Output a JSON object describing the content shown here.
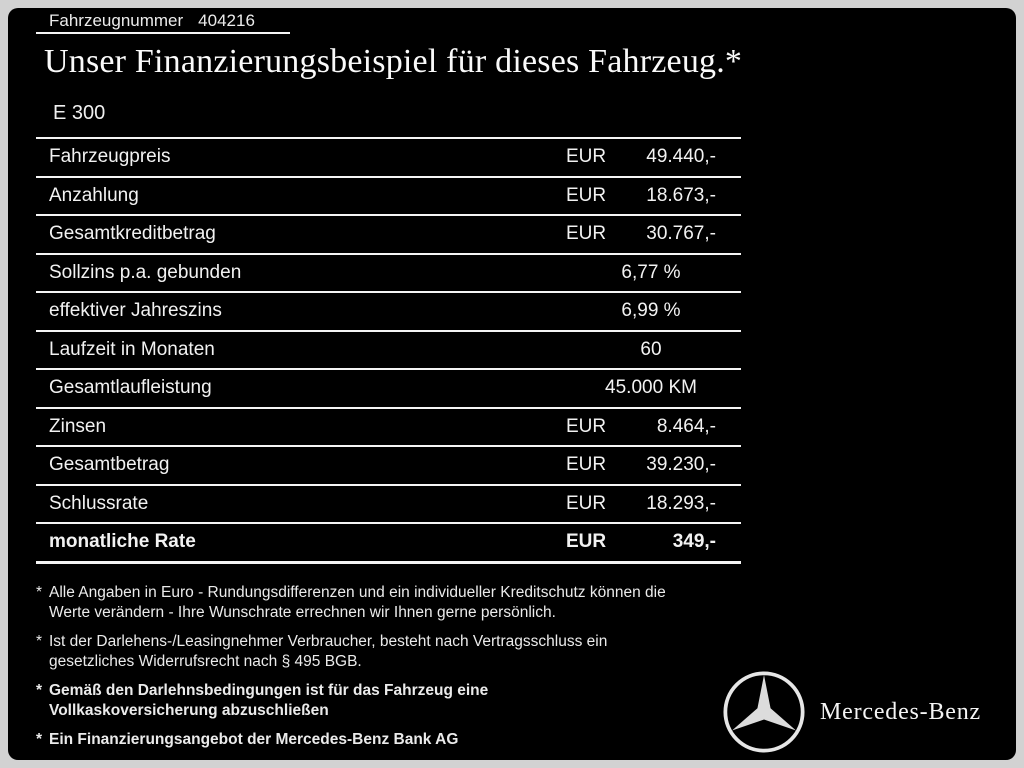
{
  "header": {
    "vehicle_number_label": "Fahrzeugnummer",
    "vehicle_number": "404216",
    "title": "Unser Finanzierungsbeispiel für dieses Fahrzeug.*",
    "model": "E 300"
  },
  "table": {
    "rows": [
      {
        "label": "Fahrzeugpreis",
        "currency": "EUR",
        "value": "49.440,-",
        "bold": false
      },
      {
        "label": "Anzahlung",
        "currency": "EUR",
        "value": "18.673,-",
        "bold": false
      },
      {
        "label": "Gesamtkreditbetrag",
        "currency": "EUR",
        "value": "30.767,-",
        "bold": false
      },
      {
        "label": "Sollzins p.a. gebunden",
        "currency": null,
        "value": "6,77 %",
        "bold": false
      },
      {
        "label": "effektiver Jahreszins",
        "currency": null,
        "value": "6,99 %",
        "bold": false
      },
      {
        "label": "Laufzeit in Monaten",
        "currency": null,
        "value": "60",
        "bold": false
      },
      {
        "label": "Gesamtlaufleistung",
        "currency": null,
        "value": "45.000 KM",
        "bold": false
      },
      {
        "label": "Zinsen",
        "currency": "EUR",
        "value": "8.464,-",
        "bold": false
      },
      {
        "label": "Gesamtbetrag",
        "currency": "EUR",
        "value": "39.230,-",
        "bold": false
      },
      {
        "label": "Schlussrate",
        "currency": "EUR",
        "value": "18.293,-",
        "bold": false
      },
      {
        "label": "monatliche Rate",
        "currency": "EUR",
        "value": "349,-",
        "bold": true
      }
    ]
  },
  "footnotes": [
    {
      "marker": "*",
      "bold": false,
      "lines": [
        "Alle Angaben in Euro - Rundungsdifferenzen und ein individueller Kreditschutz können die",
        "Werte verändern - Ihre Wunschrate errechnen wir Ihnen gerne persönlich."
      ]
    },
    {
      "marker": "*",
      "bold": false,
      "lines": [
        "Ist der Darlehens-/Leasingnehmer Verbraucher, besteht nach Vertragsschluss ein",
        "gesetzliches Widerrufsrecht nach § 495 BGB."
      ]
    },
    {
      "marker": "*",
      "bold": true,
      "lines": [
        "Gemäß den Darlehnsbedingungen ist für das Fahrzeug eine",
        "Vollkaskoversicherung abzuschließen"
      ]
    },
    {
      "marker": "*",
      "bold": true,
      "lines": [
        "Ein Finanzierungsangebot der Mercedes-Benz Bank AG"
      ]
    }
  ],
  "brand": {
    "name": "Mercedes-Benz",
    "logo_icon": "mercedes-star-icon"
  },
  "colors": {
    "background": "#000000",
    "frame": "#d2d2d2",
    "text": "#f2f2f2",
    "line": "#f5f5f5"
  }
}
